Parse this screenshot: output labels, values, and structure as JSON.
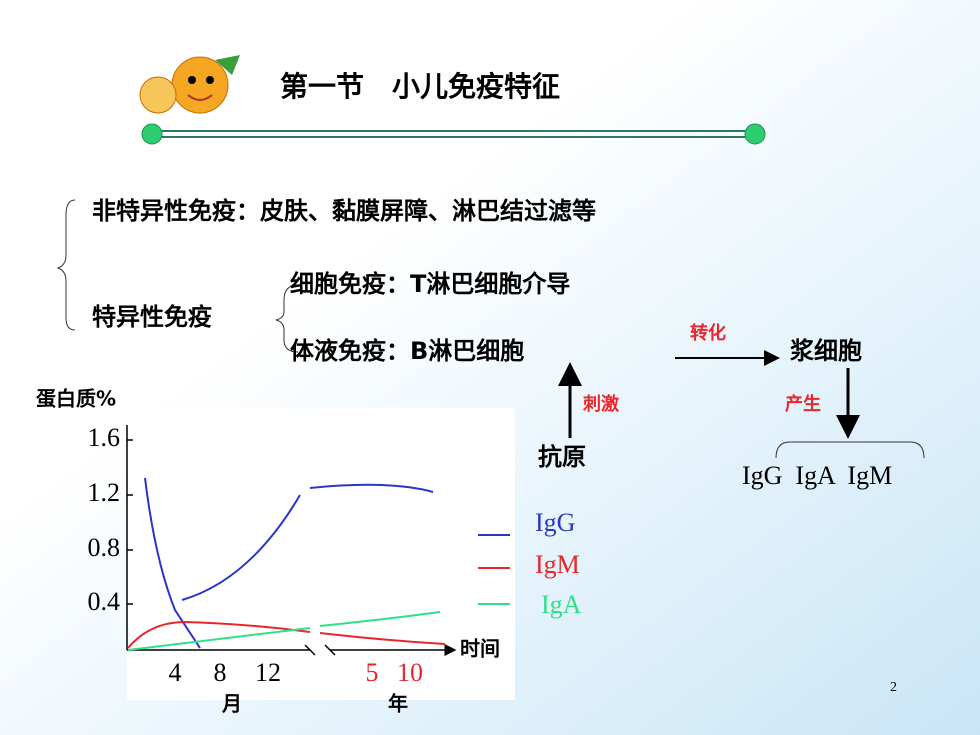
{
  "header": {
    "title": "第一节　小儿免疫特征"
  },
  "diagram": {
    "nonspecific": "非特异性免疫：皮肤、黏膜屏障、淋巴结过滤等",
    "specific": "特异性免疫",
    "cellular_label": "细胞免疫：",
    "cellular_text": "T淋巴细胞介导",
    "humoral_label": "体液免疫：",
    "humoral_text": "B淋巴细胞",
    "transform": "转化",
    "plasma": "浆细胞",
    "stimulate": "刺激",
    "produce": "产生",
    "antigen": "抗原",
    "antibodies": "IgG  IgA  IgM"
  },
  "chart": {
    "y_label": "蛋白质%",
    "yticks": [
      "1.6",
      "1.2",
      "0.8",
      "0.4"
    ],
    "xticks_month": [
      "4",
      "8",
      "12"
    ],
    "month_label": "月",
    "xticks_year": [
      "5",
      "10"
    ],
    "year_label": "年",
    "x_label": "时间",
    "legend": [
      "IgG",
      "IgM",
      "IgA"
    ]
  },
  "page_number": "2"
}
